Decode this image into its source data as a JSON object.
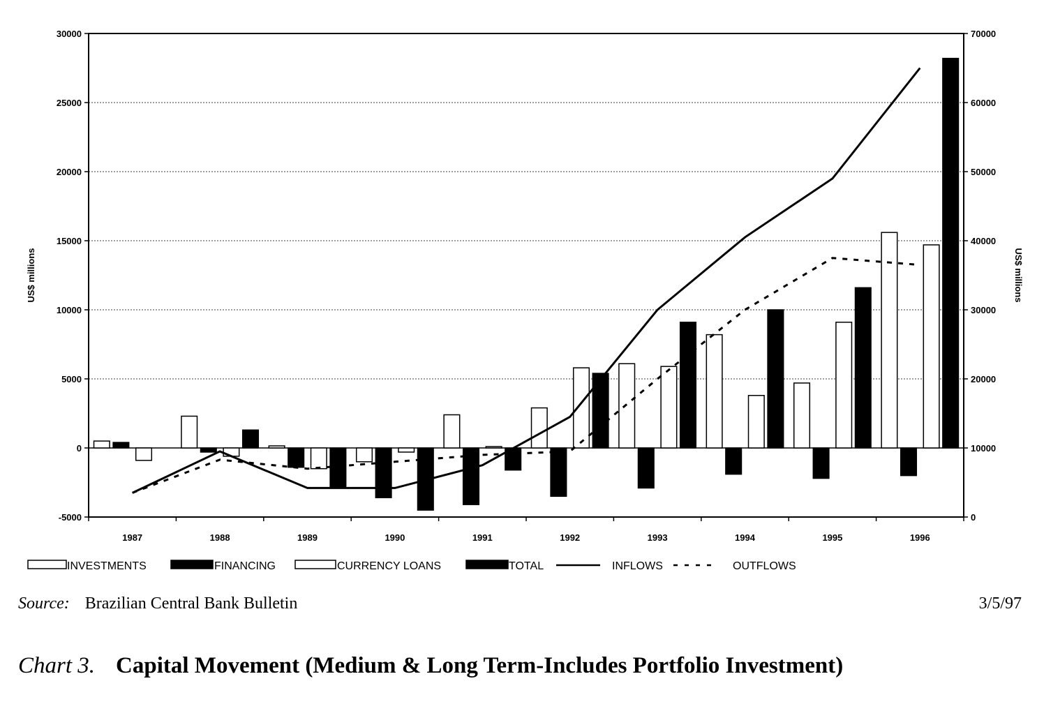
{
  "chart_data": {
    "type": "bar",
    "categories": [
      "1987",
      "1988",
      "1989",
      "1990",
      "1991",
      "1992",
      "1993",
      "1994",
      "1995",
      "1996"
    ],
    "category_labels": [
      "1987",
      "1988",
      "1989",
      "1990",
      "1991",
      "1992",
      "1993",
      "1994",
      "1995",
      "1996"
    ],
    "left_axis": {
      "label": "US$ millions",
      "ylim": [
        -5000,
        30000
      ],
      "ticks": [
        -5000,
        0,
        5000,
        10000,
        15000,
        20000,
        25000,
        30000
      ]
    },
    "right_axis": {
      "label": "US$ millions",
      "ylim": [
        0,
        70000
      ],
      "ticks": [
        0,
        10000,
        20000,
        30000,
        40000,
        50000,
        60000,
        70000
      ]
    },
    "grid": true,
    "series": [
      {
        "name": "INVESTMENTS",
        "type": "bar",
        "axis": "left",
        "values": [
          500,
          2300,
          150,
          -1000,
          2400,
          2900,
          6100,
          8200,
          4700,
          15600
        ]
      },
      {
        "name": "FINANCING",
        "type": "bar",
        "axis": "left",
        "values": [
          400,
          -300,
          -1400,
          -3600,
          -4100,
          -3500,
          -2900,
          -1900,
          -2200,
          -2000
        ]
      },
      {
        "name": "CURRENCY LOANS",
        "type": "bar",
        "axis": "left",
        "values": [
          -900,
          -600,
          -1500,
          -300,
          100,
          5800,
          5900,
          3800,
          9100,
          14700
        ]
      },
      {
        "name": "TOTAL",
        "type": "bar",
        "axis": "left",
        "values": [
          0,
          1300,
          -2800,
          -4500,
          -1600,
          5400,
          9100,
          10000,
          11600,
          28200
        ]
      },
      {
        "name": "INFLOWS",
        "type": "line",
        "axis": "right",
        "style": "solid",
        "values": [
          3500,
          9500,
          4200,
          4200,
          7500,
          14500,
          30000,
          40500,
          49000,
          65000
        ]
      },
      {
        "name": "OUTFLOWS",
        "type": "line",
        "axis": "right",
        "style": "dashed",
        "values": [
          3500,
          8300,
          7000,
          8000,
          9000,
          9500,
          20000,
          30000,
          37500,
          36500
        ]
      }
    ],
    "legend_placement": "bottom"
  },
  "footer": {
    "source_label": "Source:",
    "source_text": "Brazilian Central Bank Bulletin",
    "date": "3/5/97"
  },
  "caption": {
    "number": "Chart 3.",
    "title": "Capital Movement (Medium & Long Term-Includes Portfolio Investment)"
  }
}
